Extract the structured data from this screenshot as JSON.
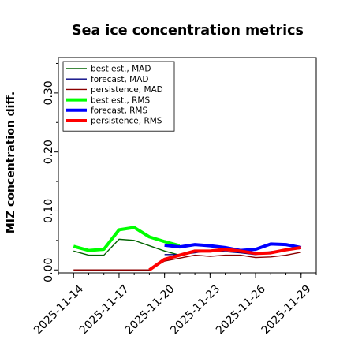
{
  "chart_data": {
    "type": "line",
    "title": "Sea ice concentration metrics",
    "ylabel": "MIZ concentration diff.",
    "xlabel": "",
    "ylim": [
      -0.005,
      0.36
    ],
    "yticks": [
      0.0,
      0.1,
      0.2,
      0.3
    ],
    "yticklabels": [
      "0.00",
      "0.10",
      "0.20",
      "0.30"
    ],
    "xlim": [
      "2025-11-13",
      "2025-11-30"
    ],
    "xticks": [
      "2025-11-14",
      "2025-11-17",
      "2025-11-20",
      "2025-11-23",
      "2025-11-26",
      "2025-11-29"
    ],
    "xticklabels": [
      "2025-11-14",
      "2025-11-17",
      "2025-11-20",
      "2025-11-23",
      "2025-11-26",
      "2025-11-29"
    ],
    "highlight_tick": "2025-11-20",
    "highlight_color": "#008000",
    "legend_position": "upper-left",
    "grid": false,
    "series": [
      {
        "name": "best est., MAD",
        "color": "#006400",
        "width": 1.4,
        "x": [
          "2025-11-14",
          "2025-11-15",
          "2025-11-16",
          "2025-11-17",
          "2025-11-18",
          "2025-11-19",
          "2025-11-20",
          "2025-11-21"
        ],
        "y": [
          0.032,
          0.025,
          0.025,
          0.052,
          0.05,
          0.041,
          0.032,
          0.025
        ]
      },
      {
        "name": "forecast,  MAD",
        "color": "#000080",
        "width": 1.4,
        "x": [
          "2025-11-20",
          "2025-11-21",
          "2025-11-22",
          "2025-11-23",
          "2025-11-24",
          "2025-11-25",
          "2025-11-26",
          "2025-11-27",
          "2025-11-28",
          "2025-11-29"
        ],
        "y": [
          0.026,
          0.026,
          0.029,
          0.033,
          0.031,
          0.029,
          0.026,
          0.031,
          0.034,
          0.036
        ]
      },
      {
        "name": "persistence, MAD",
        "color": "#8b0000",
        "width": 1.4,
        "x": [
          "2025-11-14",
          "2025-11-15",
          "2025-11-16",
          "2025-11-17",
          "2025-11-18",
          "2025-11-19",
          "2025-11-20",
          "2025-11-21",
          "2025-11-22",
          "2025-11-23",
          "2025-11-24",
          "2025-11-25",
          "2025-11-26",
          "2025-11-27",
          "2025-11-28",
          "2025-11-29"
        ],
        "y": [
          0.0,
          0.0,
          0.0,
          0.0,
          0.0,
          0.0,
          0.015,
          0.02,
          0.025,
          0.023,
          0.025,
          0.025,
          0.021,
          0.022,
          0.025,
          0.03
        ]
      },
      {
        "name": "best est., RMS",
        "color": "#00ff00",
        "width": 4,
        "x": [
          "2025-11-14",
          "2025-11-15",
          "2025-11-16",
          "2025-11-17",
          "2025-11-18",
          "2025-11-19",
          "2025-11-20",
          "2025-11-21"
        ],
        "y": [
          0.04,
          0.033,
          0.035,
          0.068,
          0.072,
          0.056,
          0.048,
          0.041
        ]
      },
      {
        "name": "forecast,  RMS",
        "color": "#0000ff",
        "width": 4,
        "x": [
          "2025-11-20",
          "2025-11-21",
          "2025-11-22",
          "2025-11-23",
          "2025-11-24",
          "2025-11-25",
          "2025-11-26",
          "2025-11-27",
          "2025-11-28",
          "2025-11-29"
        ],
        "y": [
          0.042,
          0.039,
          0.043,
          0.041,
          0.038,
          0.033,
          0.035,
          0.044,
          0.043,
          0.038
        ]
      },
      {
        "name": "persistence, RMS",
        "color": "#ff0000",
        "width": 4,
        "x": [
          "2025-11-19",
          "2025-11-20",
          "2025-11-21",
          "2025-11-22",
          "2025-11-23",
          "2025-11-24",
          "2025-11-25",
          "2025-11-26",
          "2025-11-27",
          "2025-11-28",
          "2025-11-29"
        ],
        "y": [
          0.0,
          0.018,
          0.025,
          0.032,
          0.032,
          0.035,
          0.032,
          0.028,
          0.029,
          0.034,
          0.038
        ]
      }
    ]
  }
}
